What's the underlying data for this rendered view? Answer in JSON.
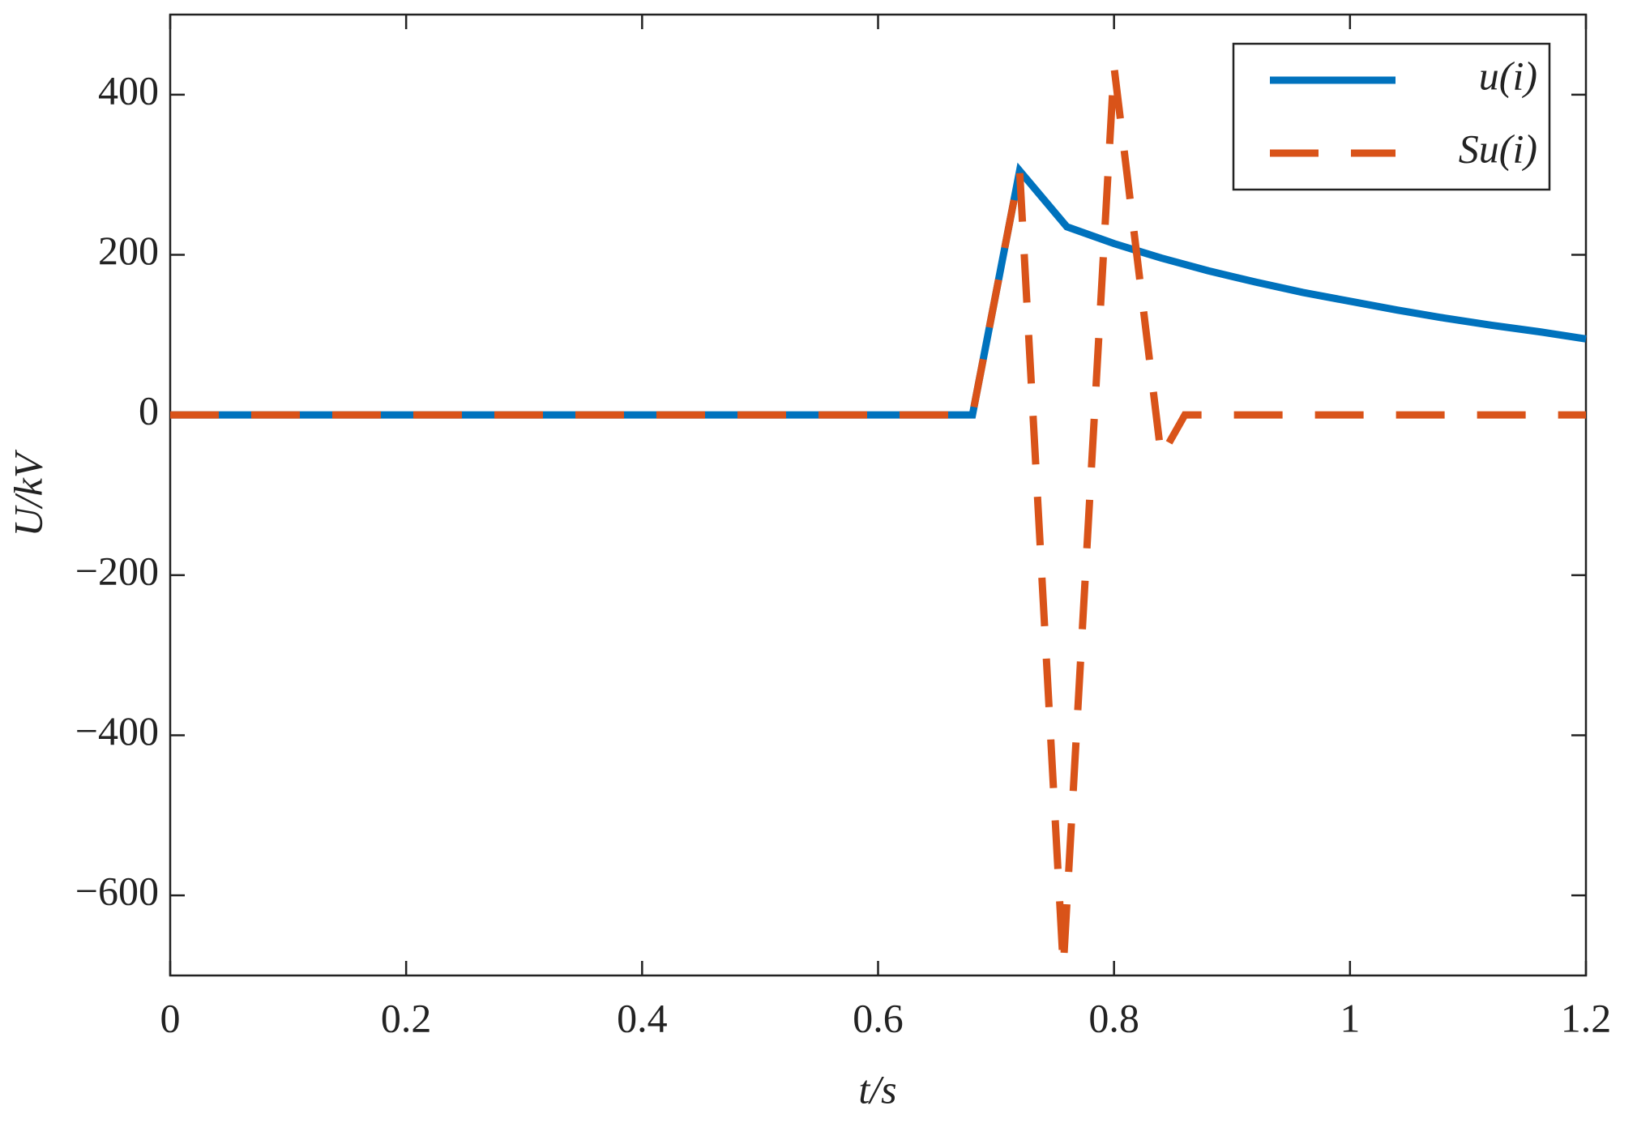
{
  "chart_data": {
    "type": "line",
    "xlabel": "t/s",
    "ylabel": "U/kV",
    "xlim": [
      0,
      1.2
    ],
    "ylim": [
      -700,
      500
    ],
    "xticks": [
      0,
      0.2,
      0.4,
      0.6,
      0.8,
      1,
      1.2
    ],
    "yticks": [
      {
        "value": -600,
        "label": "−600"
      },
      {
        "value": -400,
        "label": "−400"
      },
      {
        "value": -200,
        "label": "−200"
      },
      0,
      200,
      400
    ],
    "legend": "upper right",
    "series": [
      {
        "name": "u(i)",
        "color": "#0072bd",
        "dash": "solid",
        "x": [
          0,
          0.68,
          0.72,
          0.76,
          0.8,
          0.84,
          0.88,
          0.92,
          0.96,
          1.0,
          1.04,
          1.08,
          1.12,
          1.16,
          1.2
        ],
        "values": [
          0,
          0,
          305,
          235,
          214,
          196,
          180,
          166,
          153,
          142,
          131,
          121,
          112,
          104,
          95
        ]
      },
      {
        "name": "Su(i)",
        "color": "#d95319",
        "dash": "dashed",
        "x": [
          0,
          0.68,
          0.72,
          0.757,
          0.8,
          0.84,
          0.86,
          1.2
        ],
        "values": [
          0,
          0,
          305,
          -690,
          435,
          -52,
          0,
          0
        ]
      }
    ]
  }
}
